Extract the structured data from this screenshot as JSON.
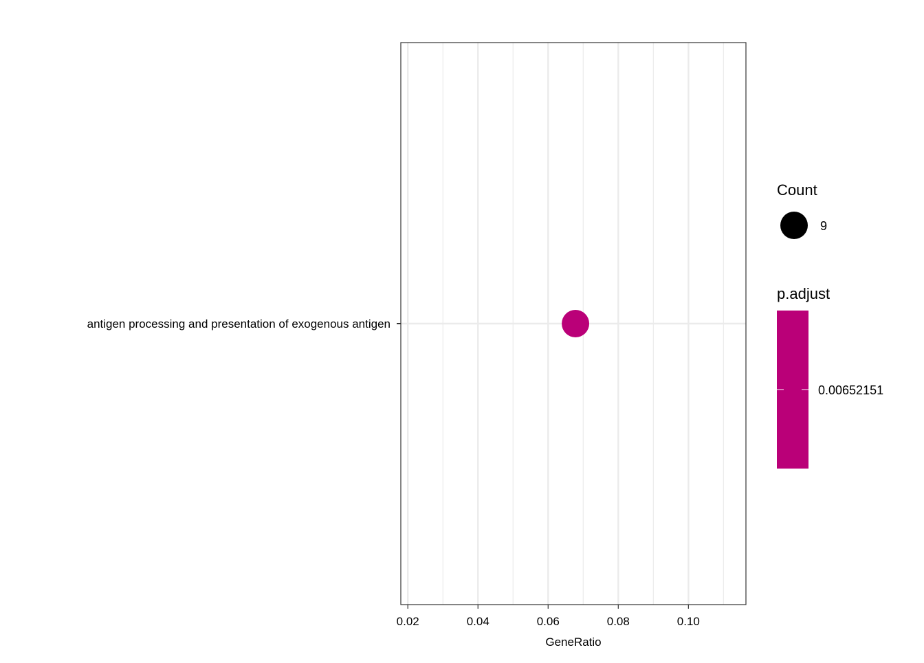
{
  "chart_data": {
    "type": "scatter",
    "title": "",
    "xlabel": "GeneRatio",
    "ylabel": "",
    "xlim": [
      0.018,
      0.1164
    ],
    "x_ticks": [
      0.02,
      0.04,
      0.06,
      0.08,
      0.1
    ],
    "x_tick_labels": [
      "0.02",
      "0.04",
      "0.06",
      "0.08",
      "0.10"
    ],
    "x_minor_ticks": [
      0.03,
      0.05,
      0.07,
      0.09,
      0.11
    ],
    "categories": [
      "antigen processing and presentation of exogenous antigen"
    ],
    "points": [
      {
        "category": "antigen processing and presentation of exogenous antigen",
        "x": 0.0678,
        "count": 9,
        "p_adjust": 0.00652151
      }
    ],
    "grid": true,
    "legend_position": "right",
    "legend": {
      "size": {
        "title": "Count",
        "entries": [
          {
            "label": "9",
            "value": 9
          }
        ]
      },
      "color": {
        "title": "p.adjust",
        "labels": [
          "0.00652151"
        ],
        "values": [
          0.00652151
        ],
        "color": "#BA0078"
      }
    },
    "colors": {
      "point": "#BA0078",
      "size_key": "#000000",
      "grid": "#EBEBEB",
      "panel_border": "#333333"
    }
  }
}
